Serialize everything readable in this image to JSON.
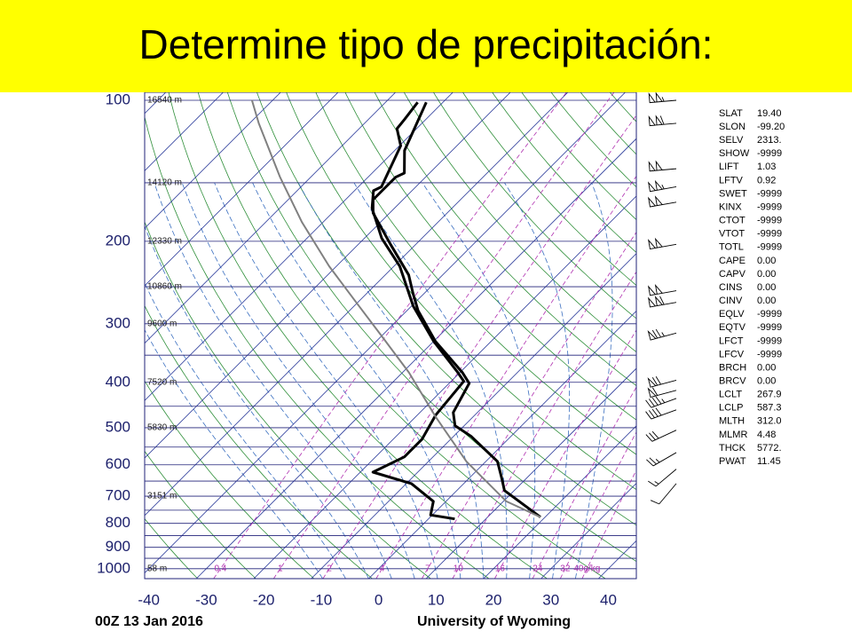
{
  "slide": {
    "title": "Determine tipo de precipitación:"
  },
  "chart_data": {
    "type": "skew-t",
    "time": "00Z 13 Jan 2016",
    "source": "University of Wyoming",
    "ylim": [
      1050,
      100
    ],
    "yticks": [
      100,
      200,
      300,
      400,
      500,
      600,
      700,
      800,
      900,
      1000
    ],
    "xlim": [
      -39,
      46.6
    ],
    "xticks": [
      -40,
      -30,
      -20,
      -10,
      0,
      10,
      20,
      30,
      40
    ],
    "log_scale_y": true,
    "colors": {
      "isobar": "#22237a",
      "isotherm": "#2a3a9a",
      "dry_adiabat": "#2f8f3a",
      "moist_adiabat": "#3a6fc0",
      "mixing_ratio": "#b030b0"
    },
    "series": [
      {
        "color": "#000000",
        "pressure": [
          776,
          681,
          644,
          590,
          522,
          495,
          464,
          402,
          381,
          327,
          281,
          258,
          236,
          203,
          174,
          163,
          146,
          143,
          128,
          112,
          101
        ],
        "values": [
          19.2,
          8.3,
          5.9,
          2.0,
          -6.9,
          -11.6,
          -14.2,
          -16.5,
          -19.6,
          -29.7,
          -38.1,
          -42.0,
          -45.9,
          -54.4,
          -62.9,
          -65.2,
          -65.2,
          -64.4,
          -68.3,
          -70.9,
          -72.9
        ]
      },
      {
        "color": "#000000",
        "pressure": [
          783,
          768,
          718,
          658,
          622,
          577,
          529,
          470,
          398,
          381,
          327,
          275,
          226,
          197,
          170,
          156,
          153,
          125,
          115,
          110,
          101
        ],
        "values": [
          4.6,
          -0.3,
          -2.2,
          -9.1,
          -17.8,
          -15.0,
          -15.0,
          -16.8,
          -17.8,
          -20.4,
          -30.0,
          -39.7,
          -49.0,
          -57.0,
          -63.9,
          -66.7,
          -66.0,
          -69.8,
          -73.4,
          -73.7,
          -74.4
        ]
      },
      {
        "color": "#808080",
        "pressure": [
          776,
          718,
          590,
          474,
          381,
          320,
          269,
          226,
          182,
          146,
          112,
          100
        ],
        "values": [
          19.2,
          10.5,
          -3.4,
          -16.5,
          -28.9,
          -39.7,
          -50.5,
          -61.3,
          -73.7,
          -85.3,
          -98.4,
          -103.6
        ]
      }
    ],
    "height_labels": [
      {
        "pressure": 100,
        "label": "16540 m"
      },
      {
        "pressure": 150,
        "label": "14120 m"
      },
      {
        "pressure": 200,
        "label": "12330 m"
      },
      {
        "pressure": 250,
        "label": "10860 m"
      },
      {
        "pressure": 300,
        "label": "9600 m"
      },
      {
        "pressure": 400,
        "label": "7520 m"
      },
      {
        "pressure": 500,
        "label": "5830 m"
      },
      {
        "pressure": 700,
        "label": "3151 m"
      },
      {
        "pressure": 1000,
        "label": "58 m"
      }
    ],
    "mixing_ratios": [
      {
        "value": 0.4,
        "label": "0.4"
      },
      1,
      2,
      4,
      7,
      10,
      16,
      24,
      32,
      {
        "value": 40,
        "label": "40g/kg"
      }
    ],
    "winds": {
      "pressure": [
        100,
        112,
        140,
        153,
        165,
        203,
        255,
        270,
        314,
        396,
        416,
        433,
        458,
        506,
        565,
        613,
        658
      ],
      "direction": [
        265,
        265,
        265,
        260,
        260,
        260,
        260,
        260,
        255,
        255,
        255,
        250,
        250,
        245,
        240,
        230,
        220
      ],
      "speed": [
        105,
        110,
        100,
        105,
        100,
        100,
        100,
        110,
        75,
        70,
        60,
        45,
        40,
        30,
        25,
        15,
        10
      ]
    },
    "indices": {
      "names": [
        "SLAT",
        "SLON",
        "SELV",
        "SHOW",
        "LIFT",
        "LFTV",
        "SWET",
        "KINX",
        "CTOT",
        "VTOT",
        "TOTL",
        "CAPE",
        "CAPV",
        "CINS",
        "CINV",
        "EQLV",
        "EQTV",
        "LFCT",
        "LFCV",
        "BRCH",
        "BRCV",
        "LCLT",
        "LCLP",
        "MLTH",
        "MLMR",
        "THCK",
        "PWAT"
      ],
      "values": [
        "19.40",
        "-99.20",
        "2313.",
        "-9999",
        "1.03",
        "0.92",
        "-9999",
        "-9999",
        "-9999",
        "-9999",
        "-9999",
        "0.00",
        "0.00",
        "0.00",
        "0.00",
        "-9999",
        "-9999",
        "-9999",
        "-9999",
        "0.00",
        "0.00",
        "267.9",
        "587.3",
        "312.0",
        "4.48",
        "5772.",
        "11.45"
      ]
    }
  }
}
